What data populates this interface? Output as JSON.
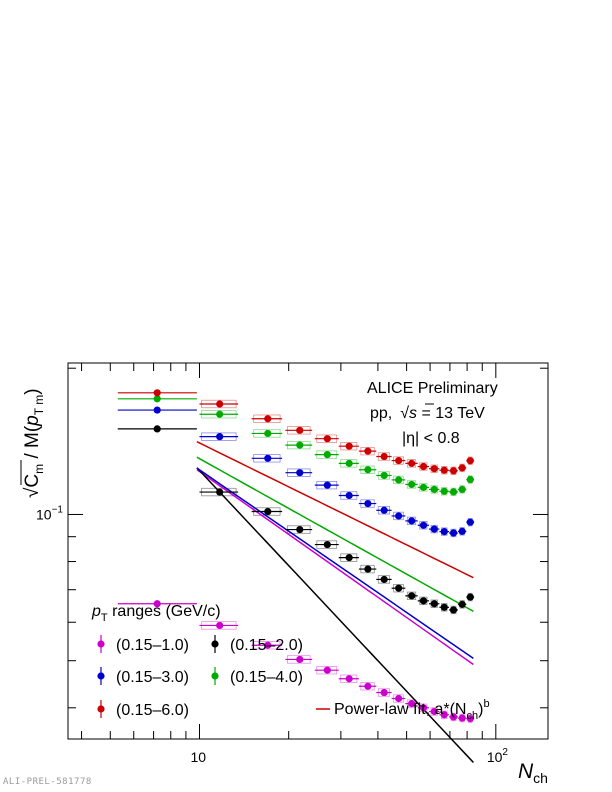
{
  "chart_data": {
    "type": "scatter",
    "title": "",
    "xlabel": "N_ch",
    "ylabel": "√C_m / M(p_T m)",
    "x_scale": "log",
    "y_scale": "log",
    "xlim": [
      3.6,
      150
    ],
    "ylim": [
      0.0345,
      0.205
    ],
    "x_ticks": [
      {
        "value": 10,
        "label": "10"
      },
      {
        "value": 100,
        "label": "10",
        "exp": "2"
      }
    ],
    "y_ticks": [
      {
        "value": 0.1,
        "label": "10",
        "exp": "−1"
      }
    ],
    "annotations": [
      "ALICE Preliminary",
      "pp,",
      "s",
      " = 13 TeV",
      "|η| < 0.8"
    ],
    "legend": {
      "placement": "bottom-left",
      "title_prefix": "p",
      "title_sub": "T",
      "title_rest": " ranges (GeV/c)",
      "fit_label": "Power-law fit, a*(N",
      "fit_sub": "ch",
      "fit_tail": ")",
      "fit_sup": "b"
    },
    "footer": "ALI-PREL-581778",
    "x": [
      7.2,
      11.7,
      17,
      21.8,
      27,
      32,
      37,
      42,
      47,
      52,
      57,
      62,
      67,
      72,
      77,
      82
    ],
    "x_err": [
      [
        5.3,
        9.8
      ],
      [
        10,
        13.5
      ],
      [
        15,
        19
      ],
      [
        19.5,
        24
      ],
      [
        24.5,
        29.5
      ],
      [
        29.5,
        34.5
      ],
      [
        34.5,
        39.5
      ],
      [
        39.5,
        44.5
      ],
      [
        44.5,
        49.5
      ],
      [
        49.5,
        54.5
      ],
      [
        54.5,
        59.5
      ],
      [
        59.5,
        64.5
      ],
      [
        64.5,
        69.5
      ],
      [
        69.5,
        74.5
      ],
      [
        74.5,
        79.5
      ],
      [
        79.5,
        84.5
      ]
    ],
    "series": [
      {
        "name": "(0.15–1.0)",
        "color": "#cc00cc",
        "fit": [
          0.33,
          -0.43
        ],
        "values": [
          0.0655,
          0.0591,
          0.0538,
          0.0503,
          0.0478,
          0.0459,
          0.0443,
          0.043,
          0.0418,
          0.0408,
          0.04,
          0.0393,
          0.0387,
          0.0383,
          0.0381,
          0.038
        ]
      },
      {
        "name": "(0.15–2.0)",
        "color": "#000000",
        "fit": [
          0.55,
          -0.65
        ],
        "values": [
          0.15,
          0.1112,
          0.1014,
          0.0931,
          0.0867,
          0.0815,
          0.0772,
          0.0735,
          0.0705,
          0.068,
          0.0664,
          0.0655,
          0.0644,
          0.0636,
          0.0653,
          0.0676
        ]
      },
      {
        "name": "(0.15–3.0)",
        "color": "#0000cc",
        "fit": [
          0.325,
          -0.42
        ],
        "values": [
          0.164,
          0.1446,
          0.1305,
          0.1219,
          0.1149,
          0.1094,
          0.1053,
          0.102,
          0.0993,
          0.097,
          0.095,
          0.0933,
          0.0922,
          0.0916,
          0.0923,
          0.0964
        ]
      },
      {
        "name": "(0.15–4.0)",
        "color": "#00aa00",
        "fit": [
          0.285,
          -0.34
        ],
        "values": [
          0.173,
          0.1608,
          0.1468,
          0.1389,
          0.1328,
          0.1274,
          0.1236,
          0.1203,
          0.1178,
          0.1153,
          0.1137,
          0.1126,
          0.1116,
          0.1113,
          0.1126,
          0.118
        ]
      },
      {
        "name": "(0.15–6.0)",
        "color": "#cc0000",
        "fit": [
          0.28,
          -0.3
        ],
        "values": [
          0.178,
          0.1688,
          0.1574,
          0.149,
          0.1432,
          0.1382,
          0.135,
          0.1316,
          0.1291,
          0.1274,
          0.1255,
          0.1242,
          0.1233,
          0.123,
          0.1247,
          0.129
        ]
      }
    ]
  }
}
